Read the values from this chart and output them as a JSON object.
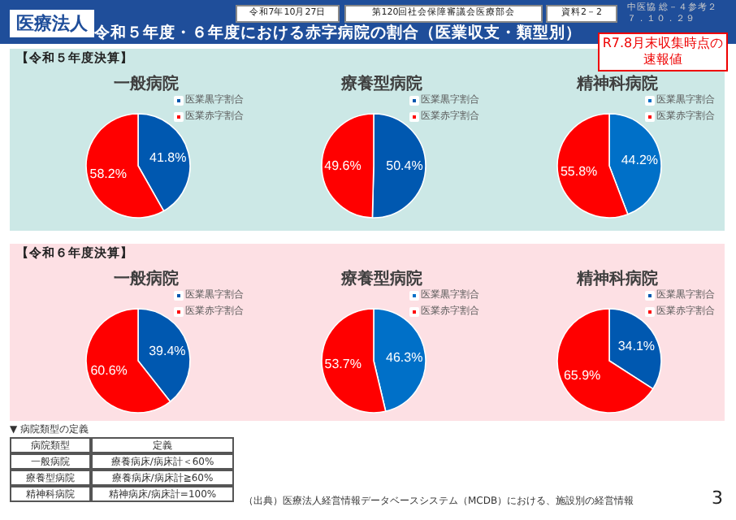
{
  "chart_data": [
    {
      "type": "pie",
      "title": "一般病院",
      "categories": [
        "医業黒字割合",
        "医業赤字割合"
      ],
      "values": [
        41.8,
        58.2
      ],
      "value_labels": [
        "41.8%",
        "58.2%"
      ],
      "colors": [
        "#0058b0",
        "#ff0000"
      ],
      "legend": "top right",
      "annotations": [
        "医療法人",
        "令和５年度・６年度における赤字病院の割合（医業収支・類型別）",
        "令和7年10月27日",
        "第120回社会保障審議会医療部会",
        "資料2－2",
        "中医協 総－４参考２",
        "７．１０．２９",
        "R7.8月末収集時点の速報値",
        "【令和５年度決算】",
        "▼ 病院類型の定義",
        "病院類型",
        "定義",
        "一般病院",
        "療養病床/病床計＜60%",
        "療養型病院",
        "療養病床/病床計≧60%",
        "精神科病院",
        "精神病床/病床計=100%",
        "（出典）医療法人経営情報データベースシステム（MCDB）における、施設別の経営情報",
        "3"
      ]
    },
    {
      "type": "pie",
      "title": "療養型病院",
      "categories": [
        "医業黒字割合",
        "医業赤字割合"
      ],
      "values": [
        50.4,
        49.6
      ],
      "value_labels": [
        "50.4%",
        "49.6%"
      ],
      "colors": [
        "#0058b0",
        "#ff0000"
      ],
      "legend": "top right"
    },
    {
      "type": "pie",
      "title": "精神科病院",
      "categories": [
        "医業黒字割合",
        "医業赤字割合"
      ],
      "values": [
        44.2,
        55.8
      ],
      "value_labels": [
        "44.2%",
        "55.8%"
      ],
      "colors": [
        "#0070c8",
        "#ff0000"
      ],
      "legend": "top right"
    },
    {
      "type": "pie",
      "title": "一般病院",
      "categories": [
        "医業黒字割合",
        "医業赤字割合"
      ],
      "values": [
        39.4,
        60.6
      ],
      "value_labels": [
        "39.4%",
        "60.6%"
      ],
      "colors": [
        "#0058b0",
        "#ff0000"
      ],
      "legend": "top right",
      "annotations": [
        "【令和６年度決算】"
      ]
    },
    {
      "type": "pie",
      "title": "療養型病院",
      "categories": [
        "医業黒字割合",
        "医業赤字割合"
      ],
      "values": [
        46.3,
        53.7
      ],
      "value_labels": [
        "46.3%",
        "53.7%"
      ],
      "colors": [
        "#0070c8",
        "#ff0000"
      ],
      "legend": "top right"
    },
    {
      "type": "pie",
      "title": "精神科病院",
      "categories": [
        "医業黒字割合",
        "医業赤字割合"
      ],
      "values": [
        34.1,
        65.9
      ],
      "value_labels": [
        "34.1%",
        "65.9%"
      ],
      "colors": [
        "#0058b0",
        "#ff0000"
      ],
      "legend": "top right"
    }
  ]
}
